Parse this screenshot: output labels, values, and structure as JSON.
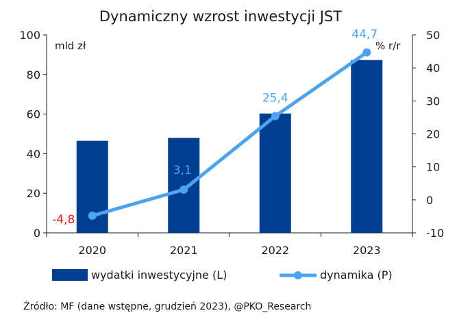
{
  "chart_data": {
    "type": "bar",
    "title": "Dynamiczny wzrost inwestycji JST",
    "categories": [
      "2020",
      "2021",
      "2022",
      "2023"
    ],
    "series": [
      {
        "name": "wydatki inwestycyjne (L)",
        "type": "bar",
        "axis": "left",
        "color": "#003f8f",
        "values": [
          46.5,
          48,
          60.3,
          87.3
        ]
      },
      {
        "name": "dynamika (P)",
        "type": "line",
        "axis": "right",
        "color": "#4da3ee",
        "values": [
          -4.8,
          3.1,
          25.4,
          44.7
        ],
        "data_labels": [
          "-4,8",
          "3,1",
          "25,4",
          "44,7"
        ],
        "label_colors": [
          "#e0201b",
          "#4da3ee",
          "#4da3ee",
          "#4da3ee"
        ]
      }
    ],
    "left_axis": {
      "unit": "mld zł",
      "ylim": [
        0,
        100
      ],
      "ticks": [
        "0",
        "20",
        "40",
        "60",
        "80",
        "100"
      ]
    },
    "right_axis": {
      "unit": "% r/r",
      "ylim": [
        -10,
        50
      ],
      "ticks": [
        "-10",
        "0",
        "10",
        "20",
        "30",
        "40",
        "50"
      ]
    },
    "grid": false,
    "legend_position": "bottom"
  },
  "source": "Źródło: MF (dane wstępne, grudzień 2023), @PKO_Research"
}
